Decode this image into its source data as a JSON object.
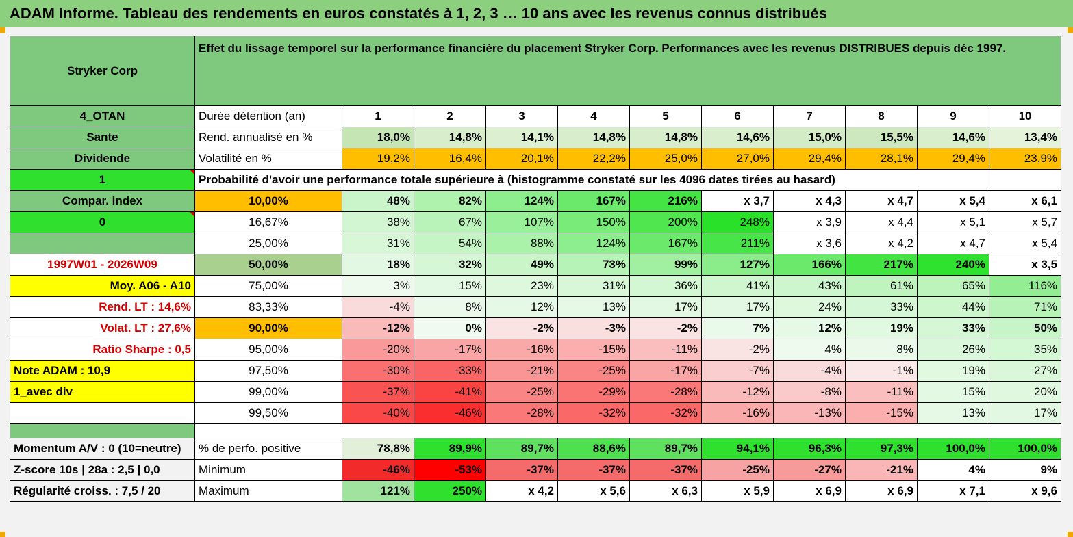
{
  "title": "ADAM Informe. Tableau des rendements en euros constatés à 1, 2, 3 … 10 ans avec les revenus connus distribués",
  "colors": {
    "header_green": "#7fc97f",
    "bright_green": "#2fe02f",
    "yellow": "#ffff00",
    "orange": "#ffbf00",
    "red_text": "#d40000"
  },
  "header": {
    "name": "Stryker Corp",
    "description": "Effet du lissage temporel sur la performance financière du placement Stryker Corp. Performances avec les revenus DISTRIBUES depuis déc 1997."
  },
  "info_rows": [
    {
      "left": "4_OTAN",
      "label": "Durée détention (an)",
      "values": [
        "1",
        "2",
        "3",
        "4",
        "5",
        "6",
        "7",
        "8",
        "9",
        "10"
      ]
    },
    {
      "left": "Sante",
      "label": "Rend. annualisé en %",
      "values": [
        "18,0%",
        "14,8%",
        "14,1%",
        "14,8%",
        "14,8%",
        "14,6%",
        "15,0%",
        "15,5%",
        "14,6%",
        "13,4%"
      ]
    },
    {
      "left": "Dividende",
      "label": "Volatilité en %",
      "values": [
        "19,2%",
        "16,4%",
        "20,1%",
        "22,2%",
        "25,0%",
        "27,0%",
        "29,4%",
        "28,1%",
        "29,4%",
        "23,9%"
      ]
    }
  ],
  "prob_row": {
    "left": "1",
    "text": "Probabilité d'avoir une performance totale supérieure à (histogramme constaté sur les 4096 dates tirées au hasard)"
  },
  "prob_rows": [
    {
      "left": "Compar. index",
      "pct": "10,00%",
      "values": [
        "48%",
        "82%",
        "124%",
        "167%",
        "216%",
        "x 3,7",
        "x 4,3",
        "x 4,7",
        "x 5,4",
        "x 6,1"
      ]
    },
    {
      "left": "0",
      "pct": "16,67%",
      "values": [
        "38%",
        "67%",
        "107%",
        "150%",
        "200%",
        "248%",
        "x 3,9",
        "x 4,4",
        "x 5,1",
        "x 5,7"
      ]
    },
    {
      "left": "",
      "pct": "25,00%",
      "values": [
        "31%",
        "54%",
        "88%",
        "124%",
        "167%",
        "211%",
        "x 3,6",
        "x 4,2",
        "x 4,7",
        "x 5,4"
      ]
    },
    {
      "left": "1997W01 - 2026W09",
      "pct": "50,00%",
      "values": [
        "18%",
        "32%",
        "49%",
        "73%",
        "99%",
        "127%",
        "166%",
        "217%",
        "240%",
        "x 3,5"
      ]
    },
    {
      "left": "Moy. A06 - A10",
      "pct": "75,00%",
      "values": [
        "3%",
        "15%",
        "23%",
        "31%",
        "36%",
        "41%",
        "43%",
        "61%",
        "65%",
        "116%"
      ]
    },
    {
      "left": "Rend. LT :",
      "left_val": "14,6%",
      "pct": "83,33%",
      "values": [
        "-4%",
        "8%",
        "12%",
        "13%",
        "17%",
        "17%",
        "24%",
        "33%",
        "44%",
        "71%"
      ]
    },
    {
      "left": "Volat. LT :",
      "left_val": "27,6%",
      "pct": "90,00%",
      "values": [
        "-12%",
        "0%",
        "-2%",
        "-3%",
        "-2%",
        "7%",
        "12%",
        "19%",
        "33%",
        "50%"
      ]
    },
    {
      "left": "Ratio Sharpe :",
      "left_val": "0,5",
      "pct": "95,00%",
      "values": [
        "-20%",
        "-17%",
        "-16%",
        "-15%",
        "-11%",
        "-2%",
        "4%",
        "8%",
        "26%",
        "35%"
      ]
    },
    {
      "left": "Note ADAM : 10,9",
      "pct": "97,50%",
      "values": [
        "-30%",
        "-33%",
        "-21%",
        "-25%",
        "-17%",
        "-7%",
        "-4%",
        "-1%",
        "19%",
        "27%"
      ]
    },
    {
      "left": "1_avec div",
      "pct": "99,00%",
      "values": [
        "-37%",
        "-41%",
        "-25%",
        "-29%",
        "-28%",
        "-12%",
        "-8%",
        "-11%",
        "15%",
        "20%"
      ]
    },
    {
      "left": "",
      "pct": "99,50%",
      "values": [
        "-40%",
        "-46%",
        "-28%",
        "-32%",
        "-32%",
        "-16%",
        "-13%",
        "-15%",
        "13%",
        "17%"
      ]
    }
  ],
  "bottom_rows": [
    {
      "left": "Momentum A/V : 0 (10=neutre)",
      "label": "% de perfo. positive",
      "values": [
        "78,8%",
        "89,9%",
        "89,7%",
        "88,6%",
        "89,7%",
        "94,1%",
        "96,3%",
        "97,3%",
        "100,0%",
        "100,0%"
      ]
    },
    {
      "left": "Z-score 10s | 28a : 2,5 | 0,0",
      "label": "Minimum",
      "values": [
        "-46%",
        "-53%",
        "-37%",
        "-37%",
        "-37%",
        "-25%",
        "-27%",
        "-21%",
        "4%",
        "9%"
      ]
    },
    {
      "left": "Régularité croiss. : 7,5 / 20",
      "label": "Maximum",
      "values": [
        "121%",
        "250%",
        "x 4,2",
        "x 5,6",
        "x 6,3",
        "x 5,9",
        "x 6,9",
        "x 6,9",
        "x 7,1",
        "x 9,6"
      ]
    }
  ]
}
